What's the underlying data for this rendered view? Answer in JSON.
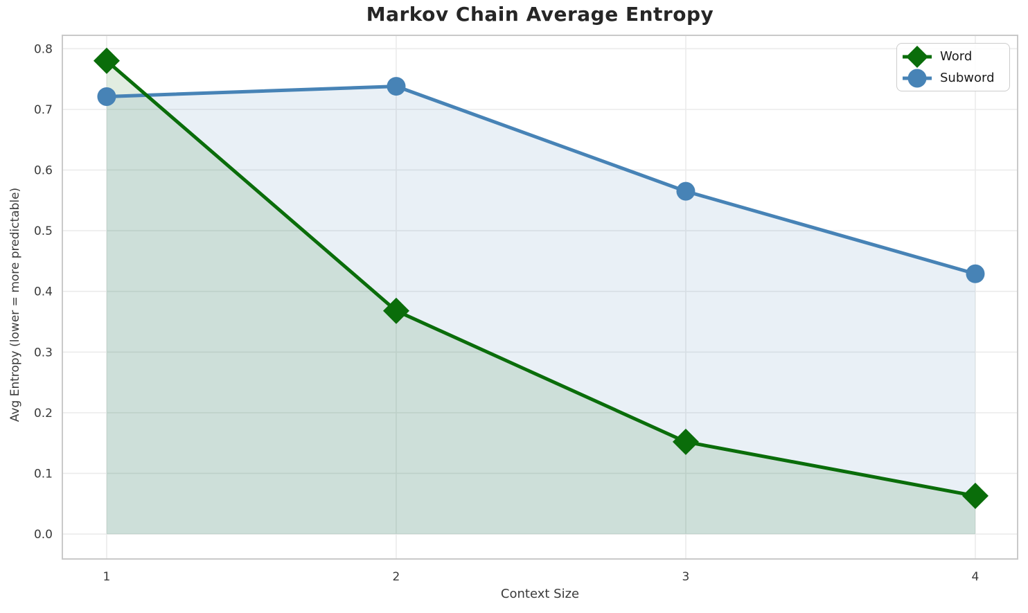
{
  "chart_data": {
    "type": "line",
    "title": "Markov Chain Average Entropy",
    "xlabel": "Context Size",
    "ylabel": "Avg Entropy (lower = more predictable)",
    "x": [
      1,
      2,
      3,
      4
    ],
    "series": [
      {
        "name": "Word",
        "values": [
          0.78,
          0.368,
          0.152,
          0.063
        ],
        "color": "#0a6d0a",
        "marker": "diamond",
        "fill_opacity": 0.12
      },
      {
        "name": "Subword",
        "values": [
          0.721,
          0.738,
          0.565,
          0.429
        ],
        "color": "#4783b6",
        "marker": "circle",
        "fill_opacity": 0.12
      }
    ],
    "x_ticks": [
      1,
      2,
      3,
      4
    ],
    "x_tick_labels": [
      "1",
      "2",
      "3",
      "4"
    ],
    "y_ticks": [
      0.0,
      0.1,
      0.2,
      0.3,
      0.4,
      0.5,
      0.6,
      0.7,
      0.8
    ],
    "y_tick_labels": [
      "0.0",
      "0.1",
      "0.2",
      "0.3",
      "0.4",
      "0.5",
      "0.6",
      "0.7",
      "0.8"
    ],
    "xlim": [
      0.847,
      4.146
    ],
    "ylim": [
      -0.041,
      0.822
    ],
    "grid": true,
    "area_fill": true,
    "fill_baseline": 0,
    "legend_position": "upper right"
  },
  "colors": {
    "background": "#ffffff",
    "grid": "#ebebeb",
    "spine": "#c9c9c9",
    "tick_text": "#3a3a3a",
    "title_text": "#262626"
  }
}
